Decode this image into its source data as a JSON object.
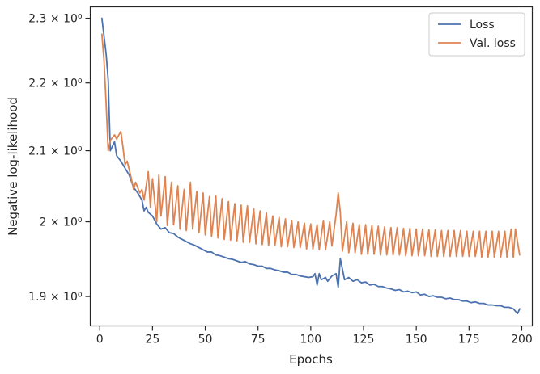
{
  "chart_data": {
    "type": "line",
    "xlabel": "Epochs",
    "ylabel": "Negative log-likelihood",
    "xlim": [
      -4.5,
      205
    ],
    "ylim": [
      1.862,
      2.318
    ],
    "yscale": "log",
    "grid": false,
    "legend_position": "top-right",
    "x_ticks": [
      {
        "value": 0,
        "label": "0"
      },
      {
        "value": 25,
        "label": "25"
      },
      {
        "value": 50,
        "label": "50"
      },
      {
        "value": 75,
        "label": "75"
      },
      {
        "value": 100,
        "label": "100"
      },
      {
        "value": 125,
        "label": "125"
      },
      {
        "value": 150,
        "label": "150"
      },
      {
        "value": 175,
        "label": "175"
      },
      {
        "value": 200,
        "label": "200"
      }
    ],
    "y_ticks": [
      {
        "value": 1.9,
        "label": "1.9 × 10⁰"
      },
      {
        "value": 2.0,
        "label": "2 × 10⁰"
      },
      {
        "value": 2.1,
        "label": "2.1 × 10⁰"
      },
      {
        "value": 2.2,
        "label": "2.2 × 10⁰"
      },
      {
        "value": 2.3,
        "label": "2.3 × 10⁰"
      }
    ],
    "series": [
      {
        "name": "Loss",
        "color": "#4c72b0",
        "points": [
          [
            1,
            2.3
          ],
          [
            3,
            2.245
          ],
          [
            4,
            2.205
          ],
          [
            5,
            2.1
          ],
          [
            7,
            2.113
          ],
          [
            8,
            2.093
          ],
          [
            10,
            2.085
          ],
          [
            12,
            2.075
          ],
          [
            14,
            2.065
          ],
          [
            16,
            2.048
          ],
          [
            18,
            2.04
          ],
          [
            20,
            2.03
          ],
          [
            21,
            2.015
          ],
          [
            22,
            2.02
          ],
          [
            23,
            2.013
          ],
          [
            25,
            2.008
          ],
          [
            27,
            1.997
          ],
          [
            29,
            1.99
          ],
          [
            31,
            1.992
          ],
          [
            33,
            1.985
          ],
          [
            35,
            1.984
          ],
          [
            37,
            1.979
          ],
          [
            39,
            1.976
          ],
          [
            41,
            1.973
          ],
          [
            43,
            1.97
          ],
          [
            45,
            1.968
          ],
          [
            47,
            1.965
          ],
          [
            49,
            1.962
          ],
          [
            51,
            1.959
          ],
          [
            53,
            1.959
          ],
          [
            55,
            1.955
          ],
          [
            57,
            1.954
          ],
          [
            59,
            1.952
          ],
          [
            61,
            1.95
          ],
          [
            63,
            1.949
          ],
          [
            65,
            1.947
          ],
          [
            67,
            1.945
          ],
          [
            69,
            1.946
          ],
          [
            71,
            1.943
          ],
          [
            73,
            1.942
          ],
          [
            75,
            1.94
          ],
          [
            77,
            1.94
          ],
          [
            79,
            1.937
          ],
          [
            81,
            1.937
          ],
          [
            83,
            1.935
          ],
          [
            85,
            1.934
          ],
          [
            87,
            1.932
          ],
          [
            89,
            1.932
          ],
          [
            91,
            1.929
          ],
          [
            93,
            1.929
          ],
          [
            95,
            1.927
          ],
          [
            97,
            1.926
          ],
          [
            99,
            1.925
          ],
          [
            101,
            1.926
          ],
          [
            102,
            1.93
          ],
          [
            103,
            1.915
          ],
          [
            104,
            1.93
          ],
          [
            105,
            1.922
          ],
          [
            107,
            1.925
          ],
          [
            108,
            1.92
          ],
          [
            110,
            1.927
          ],
          [
            112,
            1.93
          ],
          [
            113,
            1.912
          ],
          [
            114,
            1.95
          ],
          [
            116,
            1.922
          ],
          [
            118,
            1.925
          ],
          [
            120,
            1.92
          ],
          [
            122,
            1.922
          ],
          [
            124,
            1.918
          ],
          [
            126,
            1.919
          ],
          [
            128,
            1.915
          ],
          [
            130,
            1.916
          ],
          [
            132,
            1.913
          ],
          [
            134,
            1.913
          ],
          [
            136,
            1.911
          ],
          [
            138,
            1.91
          ],
          [
            140,
            1.908
          ],
          [
            142,
            1.909
          ],
          [
            144,
            1.906
          ],
          [
            146,
            1.907
          ],
          [
            148,
            1.905
          ],
          [
            150,
            1.906
          ],
          [
            152,
            1.902
          ],
          [
            154,
            1.903
          ],
          [
            156,
            1.9
          ],
          [
            158,
            1.901
          ],
          [
            160,
            1.899
          ],
          [
            162,
            1.899
          ],
          [
            164,
            1.897
          ],
          [
            166,
            1.898
          ],
          [
            168,
            1.896
          ],
          [
            170,
            1.896
          ],
          [
            172,
            1.894
          ],
          [
            174,
            1.894
          ],
          [
            176,
            1.892
          ],
          [
            178,
            1.893
          ],
          [
            180,
            1.891
          ],
          [
            182,
            1.891
          ],
          [
            184,
            1.889
          ],
          [
            186,
            1.889
          ],
          [
            188,
            1.888
          ],
          [
            190,
            1.888
          ],
          [
            192,
            1.886
          ],
          [
            194,
            1.886
          ],
          [
            196,
            1.884
          ],
          [
            198,
            1.878
          ],
          [
            199,
            1.884
          ]
        ]
      },
      {
        "name": "Val. loss",
        "color": "#dd8452",
        "points": [
          [
            1,
            2.275
          ],
          [
            2,
            2.235
          ],
          [
            3,
            2.17
          ],
          [
            4,
            2.1
          ],
          [
            5,
            2.115
          ],
          [
            7,
            2.123
          ],
          [
            8,
            2.117
          ],
          [
            10,
            2.128
          ],
          [
            11,
            2.105
          ],
          [
            12,
            2.08
          ],
          [
            13,
            2.085
          ],
          [
            15,
            2.06
          ],
          [
            16,
            2.045
          ],
          [
            17,
            2.055
          ],
          [
            19,
            2.04
          ],
          [
            20,
            2.045
          ],
          [
            21,
            2.03
          ],
          [
            23,
            2.07
          ],
          [
            24,
            2.02
          ],
          [
            25,
            2.06
          ],
          [
            27,
            2.0
          ],
          [
            28,
            2.065
          ],
          [
            29,
            2.008
          ],
          [
            31,
            2.063
          ],
          [
            32,
            1.995
          ],
          [
            34,
            2.055
          ],
          [
            35,
            1.996
          ],
          [
            37,
            2.05
          ],
          [
            38,
            1.99
          ],
          [
            40,
            2.045
          ],
          [
            41,
            1.988
          ],
          [
            43,
            2.055
          ],
          [
            44,
            1.99
          ],
          [
            46,
            2.042
          ],
          [
            47,
            1.985
          ],
          [
            49,
            2.04
          ],
          [
            50,
            1.982
          ],
          [
            52,
            2.035
          ],
          [
            53,
            1.98
          ],
          [
            55,
            2.036
          ],
          [
            56,
            1.978
          ],
          [
            58,
            2.032
          ],
          [
            59,
            1.976
          ],
          [
            61,
            2.028
          ],
          [
            62,
            1.975
          ],
          [
            64,
            2.025
          ],
          [
            65,
            1.974
          ],
          [
            67,
            2.023
          ],
          [
            68,
            1.972
          ],
          [
            70,
            2.022
          ],
          [
            71,
            1.972
          ],
          [
            73,
            2.018
          ],
          [
            74,
            1.97
          ],
          [
            76,
            2.015
          ],
          [
            77,
            1.969
          ],
          [
            79,
            2.012
          ],
          [
            80,
            1.968
          ],
          [
            82,
            2.008
          ],
          [
            83,
            1.968
          ],
          [
            85,
            2.006
          ],
          [
            86,
            1.966
          ],
          [
            88,
            2.004
          ],
          [
            89,
            1.966
          ],
          [
            91,
            2.002
          ],
          [
            92,
            1.965
          ],
          [
            94,
            2.0
          ],
          [
            95,
            1.965
          ],
          [
            97,
            1.998
          ],
          [
            98,
            1.963
          ],
          [
            100,
            1.997
          ],
          [
            101,
            1.963
          ],
          [
            103,
            1.996
          ],
          [
            104,
            1.962
          ],
          [
            106,
            2.002
          ],
          [
            107,
            1.962
          ],
          [
            109,
            2.0
          ],
          [
            110,
            1.967
          ],
          [
            112,
            2.01
          ],
          [
            113,
            2.04
          ],
          [
            114,
            2.013
          ],
          [
            115,
            1.96
          ],
          [
            117,
            2.0
          ],
          [
            118,
            1.958
          ],
          [
            120,
            1.998
          ],
          [
            121,
            1.958
          ],
          [
            123,
            1.996
          ],
          [
            124,
            1.956
          ],
          [
            126,
            1.996
          ],
          [
            127,
            1.956
          ],
          [
            129,
            1.995
          ],
          [
            130,
            1.956
          ],
          [
            132,
            1.994
          ],
          [
            133,
            1.955
          ],
          [
            135,
            1.993
          ],
          [
            136,
            1.955
          ],
          [
            138,
            1.992
          ],
          [
            139,
            1.955
          ],
          [
            141,
            1.992
          ],
          [
            142,
            1.955
          ],
          [
            144,
            1.991
          ],
          [
            145,
            1.954
          ],
          [
            147,
            1.991
          ],
          [
            148,
            1.954
          ],
          [
            150,
            1.99
          ],
          [
            151,
            1.954
          ],
          [
            153,
            1.99
          ],
          [
            154,
            1.954
          ],
          [
            156,
            1.989
          ],
          [
            157,
            1.953
          ],
          [
            159,
            1.989
          ],
          [
            160,
            1.953
          ],
          [
            162,
            1.988
          ],
          [
            163,
            1.953
          ],
          [
            165,
            1.988
          ],
          [
            166,
            1.953
          ],
          [
            168,
            1.988
          ],
          [
            169,
            1.953
          ],
          [
            171,
            1.988
          ],
          [
            172,
            1.953
          ],
          [
            174,
            1.987
          ],
          [
            175,
            1.953
          ],
          [
            177,
            1.987
          ],
          [
            178,
            1.953
          ],
          [
            180,
            1.987
          ],
          [
            181,
            1.952
          ],
          [
            183,
            1.987
          ],
          [
            184,
            1.952
          ],
          [
            186,
            1.987
          ],
          [
            187,
            1.952
          ],
          [
            189,
            1.987
          ],
          [
            190,
            1.952
          ],
          [
            192,
            1.987
          ],
          [
            193,
            1.952
          ],
          [
            195,
            1.99
          ],
          [
            196,
            1.952
          ],
          [
            197,
            1.99
          ],
          [
            199,
            1.955
          ]
        ]
      }
    ]
  }
}
